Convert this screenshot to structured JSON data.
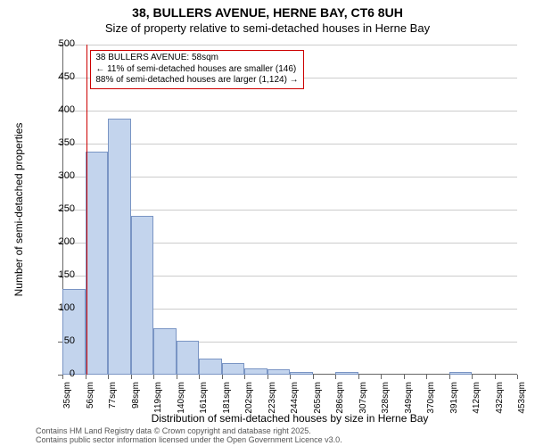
{
  "title_line1": "38, BULLERS AVENUE, HERNE BAY, CT6 8UH",
  "title_line2": "Size of property relative to semi-detached houses in Herne Bay",
  "y_axis_label": "Number of semi-detached properties",
  "x_axis_label": "Distribution of semi-detached houses by size in Herne Bay",
  "attribution_line1": "Contains HM Land Registry data © Crown copyright and database right 2025.",
  "attribution_line2": "Contains public sector information licensed under the Open Government Licence v3.0.",
  "chart": {
    "type": "histogram",
    "y_min": 0,
    "y_max": 500,
    "y_tick_step": 50,
    "y_ticks": [
      0,
      50,
      100,
      150,
      200,
      250,
      300,
      350,
      400,
      450,
      500
    ],
    "x_min": 35,
    "x_max": 464,
    "x_bin_width": 21,
    "x_tick_labels": [
      "35sqm",
      "56sqm",
      "77sqm",
      "98sqm",
      "119sqm",
      "140sqm",
      "161sqm",
      "181sqm",
      "202sqm",
      "223sqm",
      "244sqm",
      "265sqm",
      "286sqm",
      "307sqm",
      "328sqm",
      "349sqm",
      "370sqm",
      "391sqm",
      "412sqm",
      "432sqm",
      "453sqm"
    ],
    "bar_fill": "#c3d4ed",
    "bar_stroke": "#7a95c4",
    "grid_color": "#cccccc",
    "background_color": "#ffffff",
    "values": [
      130,
      338,
      388,
      240,
      70,
      52,
      25,
      18,
      10,
      8,
      4,
      0,
      4,
      0,
      0,
      0,
      0,
      4,
      0,
      0
    ],
    "marker_x": 58,
    "marker_color": "#cc0000",
    "annotation": {
      "line1": "38 BULLERS AVENUE: 58sqm",
      "line2": "← 11% of semi-detached houses are smaller (146)",
      "line3": "88% of semi-detached houses are larger (1,124) →",
      "border_color": "#cc0000",
      "background": "#ffffff",
      "fontsize": 10
    }
  }
}
